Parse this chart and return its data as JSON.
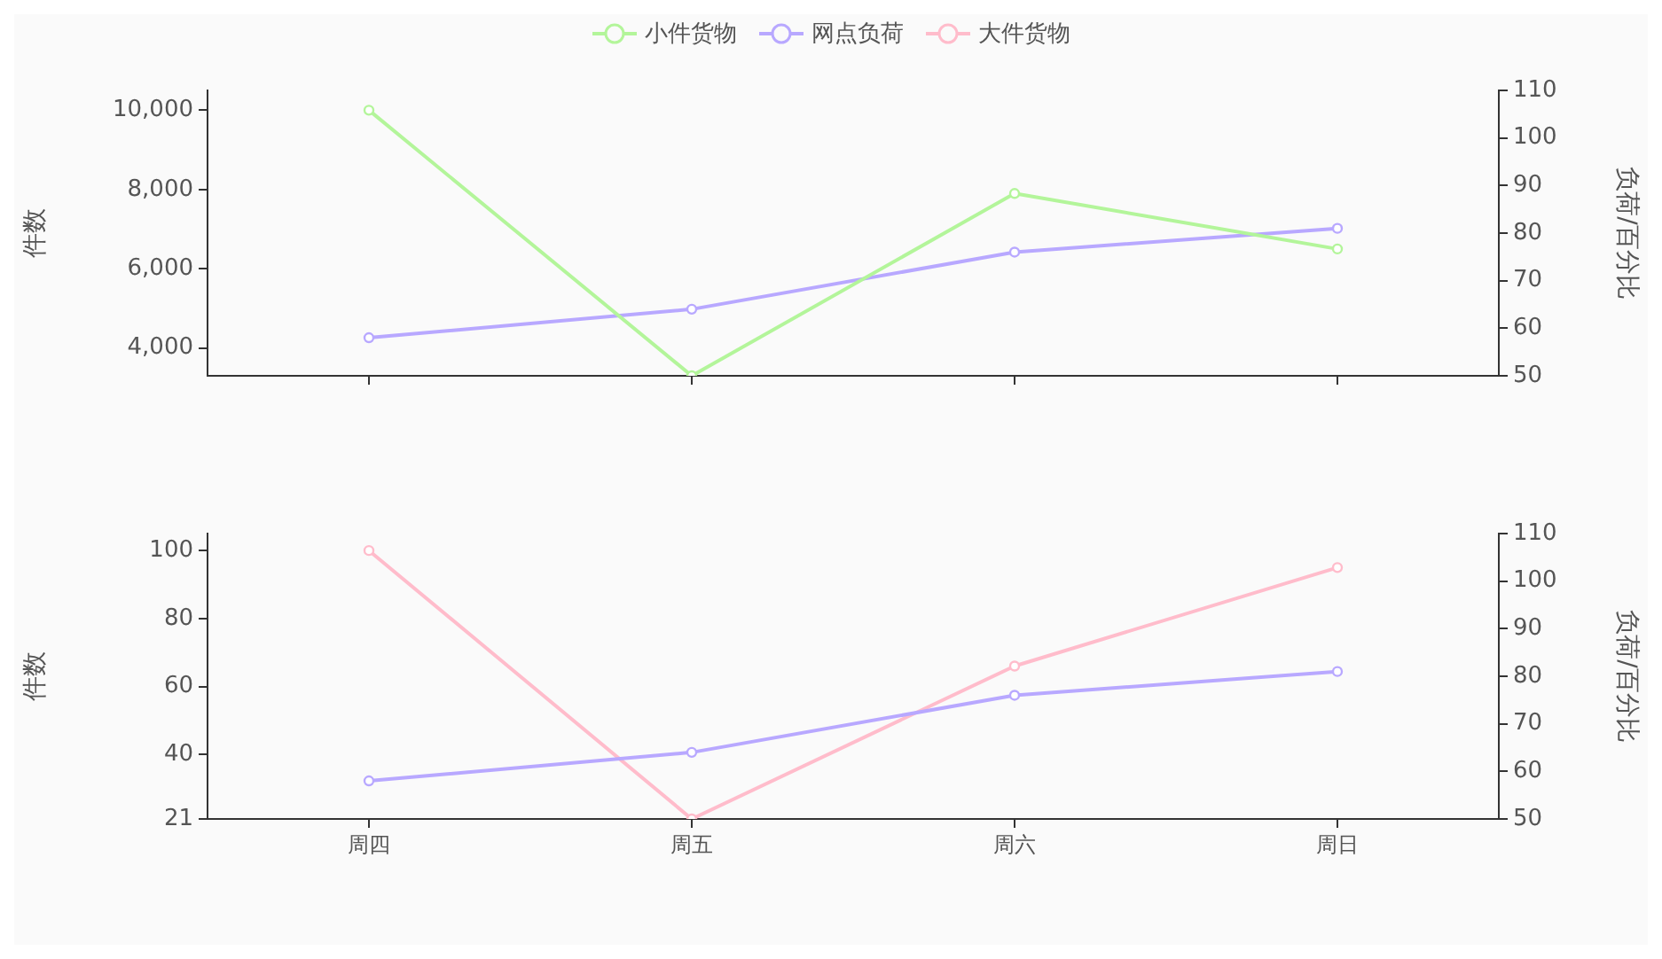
{
  "chart_data": [
    {
      "type": "line",
      "categories": [
        null,
        null,
        null,
        null
      ],
      "ylabel": "件数",
      "y2label": "负荷/百分比",
      "ylim": [
        3300,
        10500
      ],
      "yticks": [
        {
          "value": 4000,
          "label": "4,000"
        },
        {
          "value": 6000,
          "label": "6,000"
        },
        {
          "value": 8000,
          "label": "8,000"
        },
        {
          "value": 10000,
          "label": "10,000"
        }
      ],
      "y2lim": [
        50,
        110
      ],
      "y2ticks": [
        50,
        60,
        70,
        80,
        90,
        100,
        110
      ],
      "tick_labels": "y",
      "legend": "top",
      "marker": "circle",
      "grid": false,
      "series": [
        {
          "name": "小件货物",
          "color": "#b3f59a",
          "values": [
            10000,
            3300,
            7900,
            6500
          ]
        },
        {
          "name": "网点负荷",
          "color": "#b8a8ff",
          "axis": "y2",
          "values": [
            58,
            64,
            76,
            81
          ]
        }
      ]
    },
    {
      "type": "line",
      "categories": [
        "周四",
        "周五",
        "周六",
        "周日"
      ],
      "ylabel": "件数",
      "y2label": "负荷/百分比",
      "ylim": [
        21,
        105
      ],
      "yticks": [
        21,
        40,
        60,
        80,
        100
      ],
      "y2lim": [
        50,
        110
      ],
      "y2ticks": [
        50,
        60,
        70,
        80,
        90,
        100,
        110
      ],
      "legend": "top",
      "marker": "circle",
      "grid": false,
      "series": [
        {
          "name": "网点负荷",
          "color": "#b8a8ff",
          "axis": "y2",
          "values": [
            58,
            64,
            76,
            81
          ]
        },
        {
          "name": "大件货物",
          "color": "#ffbccb",
          "values": [
            100,
            21,
            66,
            95
          ]
        }
      ]
    }
  ]
}
